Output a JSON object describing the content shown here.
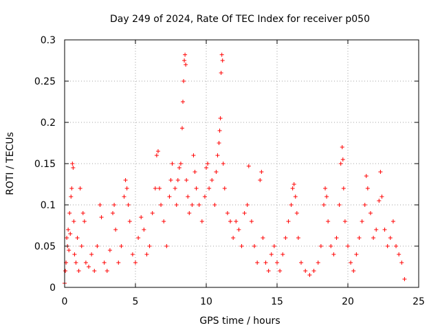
{
  "chart_data": {
    "type": "scatter",
    "title": "Day 249 of 2024, Rate Of TEC Index for receiver p050",
    "xlabel": "GPS time / hours",
    "ylabel": "ROTI / TECUs",
    "xlim": [
      0,
      25
    ],
    "ylim": [
      0,
      0.3
    ],
    "x_ticks": [
      0,
      5,
      10,
      15,
      20,
      25
    ],
    "x_tick_labels": [
      "0",
      "5",
      "10",
      "15",
      "20",
      "25"
    ],
    "y_ticks": [
      0,
      0.05,
      0.1,
      0.15,
      0.2,
      0.25,
      0.3
    ],
    "y_tick_labels": [
      "0",
      "0.05",
      "0.1",
      "0.15",
      "0.2",
      "0.25",
      "0.3"
    ],
    "grid": true,
    "marker": "plus",
    "color": "#ff0000",
    "series": [
      {
        "points": [
          [
            0.0,
            0.005
          ],
          [
            0.05,
            0.02
          ],
          [
            0.1,
            0.03
          ],
          [
            0.15,
            0.06
          ],
          [
            0.2,
            0.05
          ],
          [
            0.25,
            0.07
          ],
          [
            0.3,
            0.045
          ],
          [
            0.35,
            0.09
          ],
          [
            0.4,
            0.065
          ],
          [
            0.45,
            0.11
          ],
          [
            0.5,
            0.12
          ],
          [
            0.55,
            0.15
          ],
          [
            0.6,
            0.145
          ],
          [
            0.65,
            0.08
          ],
          [
            0.7,
            0.04
          ],
          [
            0.8,
            0.03
          ],
          [
            0.9,
            0.06
          ],
          [
            1.0,
            0.02
          ],
          [
            1.1,
            0.12
          ],
          [
            1.2,
            0.05
          ],
          [
            1.3,
            0.09
          ],
          [
            1.4,
            0.08
          ],
          [
            1.5,
            0.03
          ],
          [
            1.7,
            0.025
          ],
          [
            1.9,
            0.04
          ],
          [
            2.1,
            0.02
          ],
          [
            2.3,
            0.05
          ],
          [
            2.5,
            0.1
          ],
          [
            2.6,
            0.085
          ],
          [
            2.8,
            0.03
          ],
          [
            3.0,
            0.02
          ],
          [
            3.2,
            0.045
          ],
          [
            3.4,
            0.09
          ],
          [
            3.5,
            0.1
          ],
          [
            3.6,
            0.07
          ],
          [
            3.8,
            0.03
          ],
          [
            4.0,
            0.05
          ],
          [
            4.2,
            0.11
          ],
          [
            4.3,
            0.13
          ],
          [
            4.4,
            0.12
          ],
          [
            4.5,
            0.1
          ],
          [
            4.6,
            0.08
          ],
          [
            4.8,
            0.04
          ],
          [
            5.0,
            0.03
          ],
          [
            5.2,
            0.06
          ],
          [
            5.4,
            0.085
          ],
          [
            5.6,
            0.07
          ],
          [
            5.8,
            0.04
          ],
          [
            6.0,
            0.05
          ],
          [
            6.2,
            0.09
          ],
          [
            6.4,
            0.12
          ],
          [
            6.5,
            0.16
          ],
          [
            6.6,
            0.165
          ],
          [
            6.7,
            0.12
          ],
          [
            6.8,
            0.1
          ],
          [
            7.0,
            0.08
          ],
          [
            7.2,
            0.05
          ],
          [
            7.4,
            0.11
          ],
          [
            7.5,
            0.13
          ],
          [
            7.6,
            0.15
          ],
          [
            7.8,
            0.12
          ],
          [
            7.9,
            0.1
          ],
          [
            8.0,
            0.13
          ],
          [
            8.1,
            0.145
          ],
          [
            8.2,
            0.15
          ],
          [
            8.3,
            0.193
          ],
          [
            8.35,
            0.225
          ],
          [
            8.4,
            0.25
          ],
          [
            8.45,
            0.275
          ],
          [
            8.5,
            0.282
          ],
          [
            8.55,
            0.27
          ],
          [
            8.6,
            0.13
          ],
          [
            8.7,
            0.11
          ],
          [
            8.8,
            0.09
          ],
          [
            9.0,
            0.1
          ],
          [
            9.1,
            0.16
          ],
          [
            9.2,
            0.14
          ],
          [
            9.3,
            0.12
          ],
          [
            9.5,
            0.1
          ],
          [
            9.7,
            0.08
          ],
          [
            9.9,
            0.11
          ],
          [
            10.0,
            0.145
          ],
          [
            10.1,
            0.15
          ],
          [
            10.2,
            0.12
          ],
          [
            10.4,
            0.13
          ],
          [
            10.6,
            0.1
          ],
          [
            10.7,
            0.14
          ],
          [
            10.8,
            0.16
          ],
          [
            10.9,
            0.175
          ],
          [
            10.95,
            0.19
          ],
          [
            11.0,
            0.205
          ],
          [
            11.05,
            0.26
          ],
          [
            11.1,
            0.282
          ],
          [
            11.15,
            0.275
          ],
          [
            11.2,
            0.15
          ],
          [
            11.3,
            0.12
          ],
          [
            11.5,
            0.09
          ],
          [
            11.7,
            0.08
          ],
          [
            11.9,
            0.06
          ],
          [
            12.1,
            0.08
          ],
          [
            12.3,
            0.07
          ],
          [
            12.5,
            0.05
          ],
          [
            12.7,
            0.09
          ],
          [
            12.9,
            0.1
          ],
          [
            13.0,
            0.147
          ],
          [
            13.2,
            0.08
          ],
          [
            13.4,
            0.05
          ],
          [
            13.6,
            0.03
          ],
          [
            13.8,
            0.13
          ],
          [
            13.9,
            0.14
          ],
          [
            14.0,
            0.06
          ],
          [
            14.2,
            0.03
          ],
          [
            14.4,
            0.02
          ],
          [
            14.6,
            0.04
          ],
          [
            14.8,
            0.05
          ],
          [
            15.0,
            0.03
          ],
          [
            15.2,
            0.02
          ],
          [
            15.4,
            0.04
          ],
          [
            15.6,
            0.06
          ],
          [
            15.8,
            0.08
          ],
          [
            16.0,
            0.1
          ],
          [
            16.1,
            0.12
          ],
          [
            16.2,
            0.125
          ],
          [
            16.3,
            0.11
          ],
          [
            16.4,
            0.09
          ],
          [
            16.5,
            0.06
          ],
          [
            16.7,
            0.03
          ],
          [
            17.0,
            0.02
          ],
          [
            17.3,
            0.015
          ],
          [
            17.6,
            0.02
          ],
          [
            17.9,
            0.03
          ],
          [
            18.1,
            0.05
          ],
          [
            18.3,
            0.1
          ],
          [
            18.4,
            0.12
          ],
          [
            18.5,
            0.11
          ],
          [
            18.6,
            0.08
          ],
          [
            18.8,
            0.05
          ],
          [
            19.0,
            0.04
          ],
          [
            19.2,
            0.06
          ],
          [
            19.4,
            0.1
          ],
          [
            19.5,
            0.15
          ],
          [
            19.6,
            0.17
          ],
          [
            19.65,
            0.155
          ],
          [
            19.7,
            0.12
          ],
          [
            19.8,
            0.08
          ],
          [
            20.0,
            0.05
          ],
          [
            20.2,
            0.03
          ],
          [
            20.4,
            0.02
          ],
          [
            20.6,
            0.04
          ],
          [
            20.8,
            0.06
          ],
          [
            21.0,
            0.08
          ],
          [
            21.2,
            0.1
          ],
          [
            21.3,
            0.135
          ],
          [
            21.4,
            0.12
          ],
          [
            21.6,
            0.09
          ],
          [
            21.8,
            0.06
          ],
          [
            22.0,
            0.07
          ],
          [
            22.2,
            0.105
          ],
          [
            22.3,
            0.14
          ],
          [
            22.4,
            0.11
          ],
          [
            22.6,
            0.07
          ],
          [
            22.8,
            0.05
          ],
          [
            23.0,
            0.06
          ],
          [
            23.2,
            0.08
          ],
          [
            23.4,
            0.05
          ],
          [
            23.6,
            0.04
          ],
          [
            23.8,
            0.03
          ],
          [
            24.0,
            0.01
          ]
        ]
      }
    ]
  }
}
